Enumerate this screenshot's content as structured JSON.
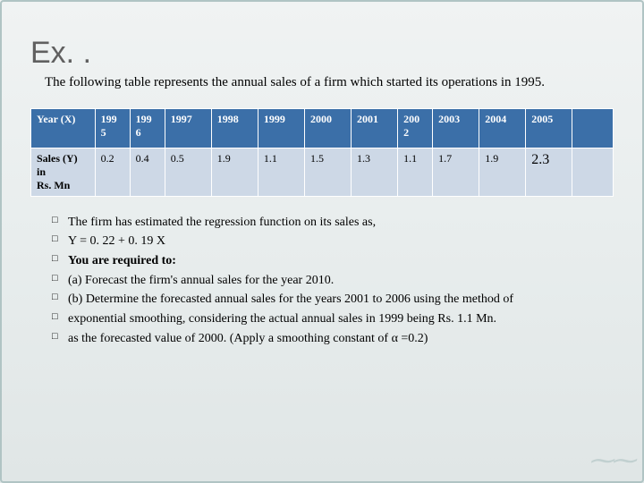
{
  "title": "Ex. .",
  "subtitle": "The following table represents the annual sales of a firm which started its operations in 1995.",
  "table": {
    "header_bg": "#3b6fa8",
    "header_text_color": "#ffffff",
    "body_bg": "#cdd8e6",
    "border_color": "#ffffff",
    "col_widths_pct": [
      11,
      6,
      6,
      8,
      8,
      8,
      8,
      8,
      6,
      8,
      8,
      8,
      7
    ],
    "header": {
      "row_label": "Year (X)",
      "cells": [
        "199 5",
        "199 6",
        "1997",
        "1998",
        "1999",
        "2000",
        "2001",
        "200 2",
        "2003",
        "2004",
        "2005",
        ""
      ]
    },
    "body": {
      "row_label": "Sales (Y) in\nRs. Mn",
      "cells": [
        "0.2",
        "0.4",
        "0.5",
        "1.9",
        "1.1",
        "1.5",
        "1.3",
        "1.1",
        "1.7",
        "1.9",
        "2.3",
        ""
      ],
      "big_cell_index": 10
    }
  },
  "bullets": [
    "The firm has estimated the regression function on its sales as,",
    "Y = 0. 22 + 0. 19 X",
    "You are required to:",
    "(a) Forecast the firm's annual sales for the year 2010.",
    "(b) Determine the forecasted annual sales for the years 2001 to 2006 using the method of",
    "exponential smoothing, considering the actual annual sales in 1999 being Rs. 1.1 Mn.",
    "as the forecasted value of 2000. (Apply a smoothing constant of α =0.2)"
  ],
  "bold_bullet_indices": [
    2
  ]
}
